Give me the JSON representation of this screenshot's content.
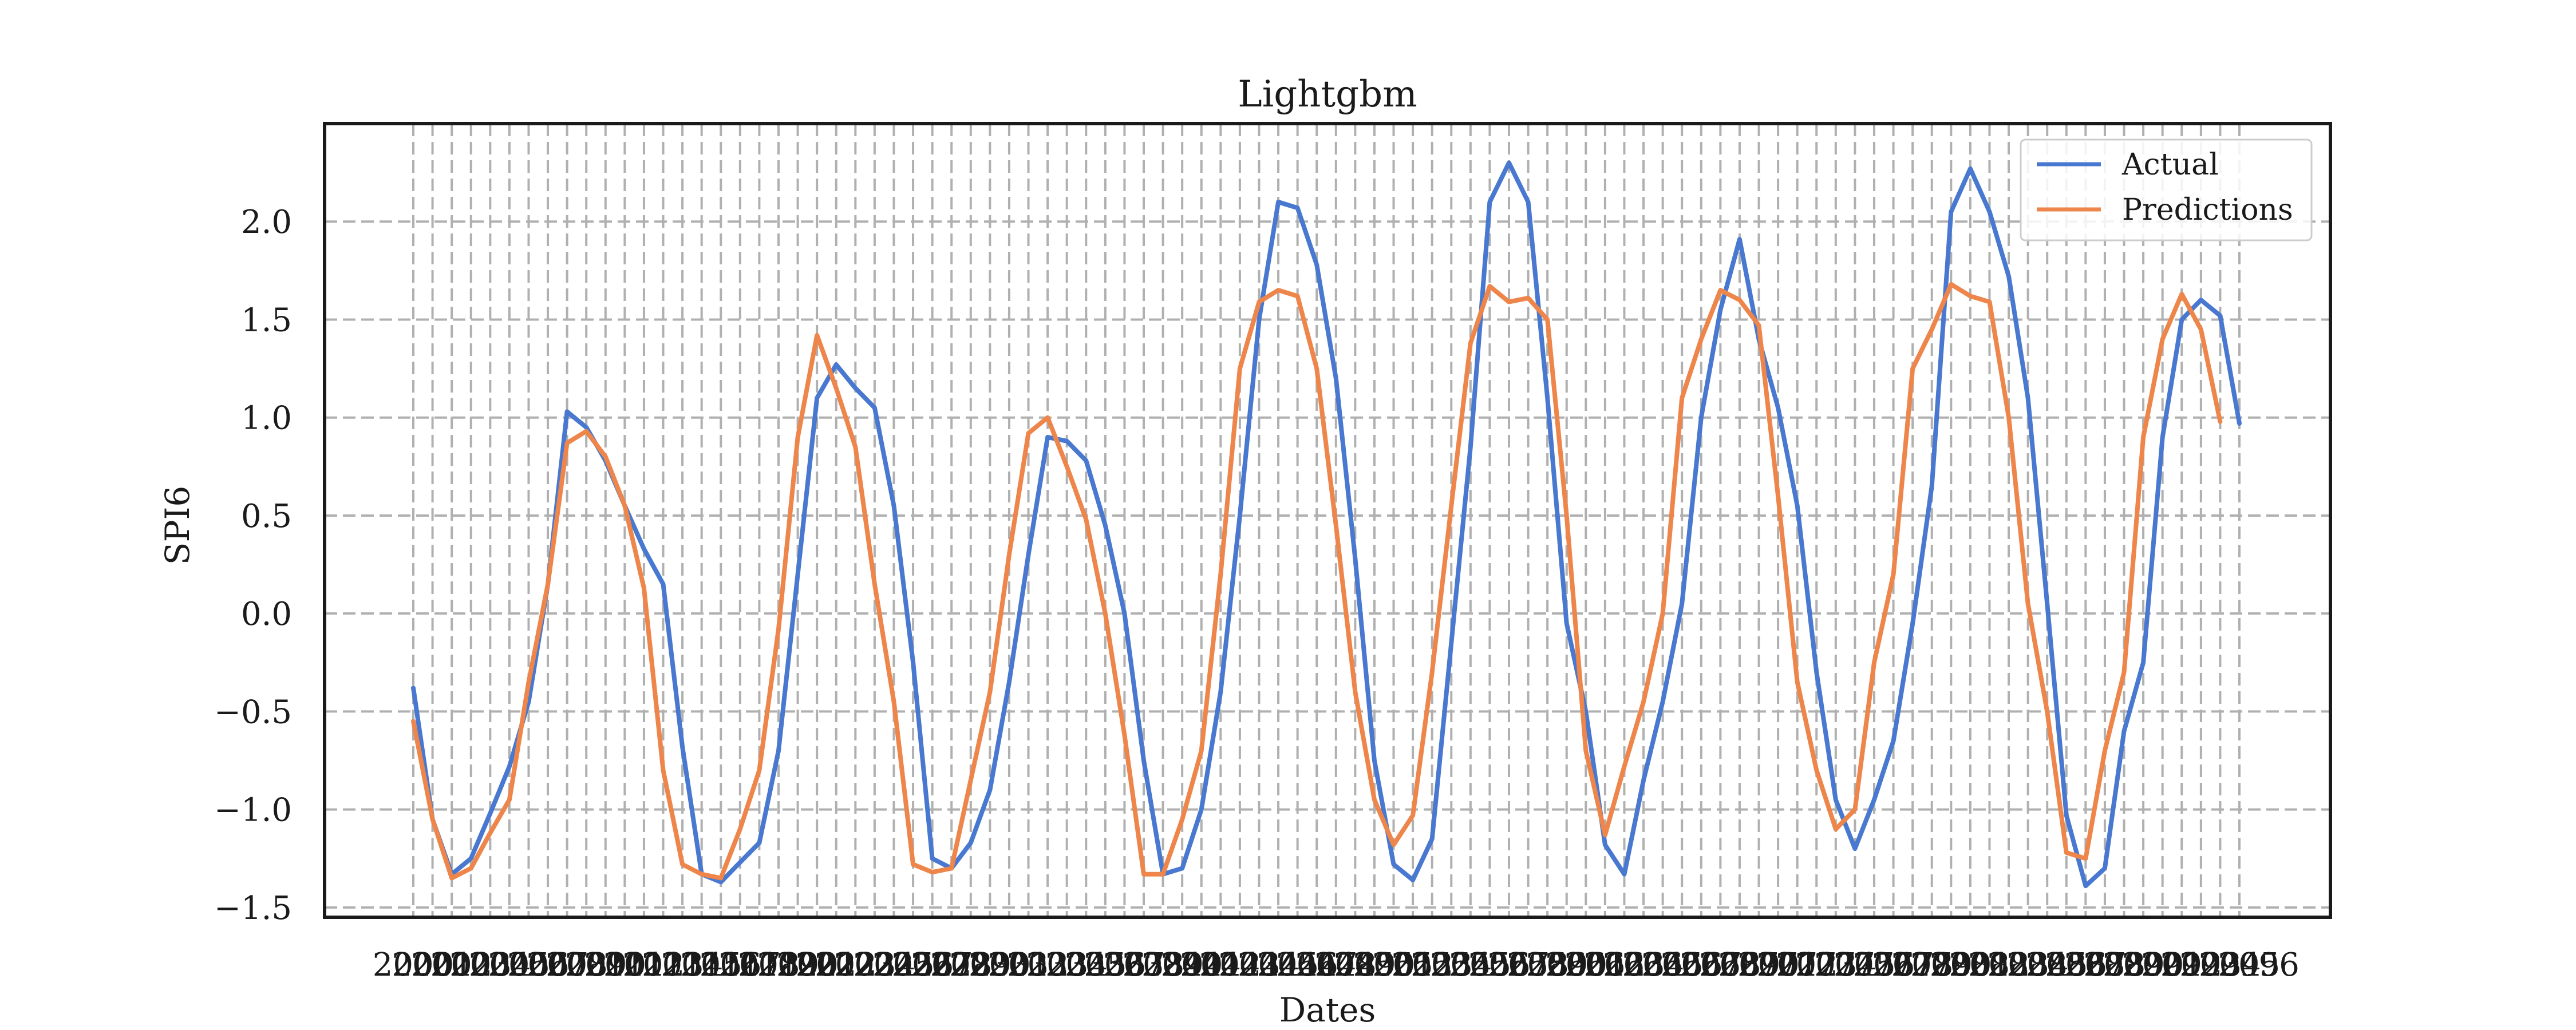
{
  "chart_data": {
    "type": "line",
    "title": "Lightgbm",
    "xlabel": "Dates",
    "ylabel": "SPI6",
    "ylim": [
      -1.55,
      2.5
    ],
    "yticks": [
      -1.5,
      -1.0,
      -0.5,
      0.0,
      0.5,
      1.0,
      1.5,
      2.0
    ],
    "ytick_labels": [
      "−1.5",
      "−1.0",
      "−0.5",
      "0.0",
      "0.5",
      "1.0",
      "1.5",
      "2.0"
    ],
    "grid": true,
    "legend": "top-right",
    "colors": {
      "Actual": "#4878cf",
      "Predictions": "#ee854a"
    },
    "xtick_labels": [
      "2000",
      "2001",
      "2002",
      "2003",
      "2004",
      "2005",
      "2006",
      "2007",
      "2008",
      "2009",
      "2010",
      "2011",
      "2012",
      "2013",
      "2014",
      "2015",
      "2016",
      "2017",
      "2018",
      "2019",
      "2020",
      "2021",
      "2022",
      "2023",
      "2024",
      "2025",
      "2026",
      "2027",
      "2028",
      "2029",
      "2030",
      "2031",
      "2032",
      "2033",
      "2034",
      "2035",
      "2036",
      "2037",
      "2038",
      "2039",
      "2040",
      "2041",
      "2042",
      "2043",
      "2044",
      "2045",
      "2046",
      "2047",
      "2048",
      "2049",
      "2050",
      "2051",
      "2052",
      "2053",
      "2054",
      "2055",
      "2056",
      "2057",
      "2058",
      "2059",
      "2060",
      "2061",
      "2062",
      "2063",
      "2064",
      "2065",
      "2066",
      "2067",
      "2068",
      "2069",
      "2070",
      "2071",
      "2072",
      "2073",
      "2074",
      "2075",
      "2076",
      "2077",
      "2078",
      "2079",
      "2080",
      "2081",
      "2082",
      "2083",
      "2084",
      "2085",
      "2086",
      "2087",
      "2088",
      "2089",
      "2090",
      "2091",
      "2092",
      "2093",
      "2094",
      "2095",
      "2096"
    ],
    "series": [
      {
        "name": "Actual",
        "values": [
          -0.38,
          -1.05,
          -1.33,
          -1.25,
          -1.02,
          -0.78,
          -0.45,
          0.15,
          1.03,
          0.95,
          0.78,
          0.55,
          0.33,
          0.15,
          -0.68,
          -1.33,
          -1.37,
          -1.27,
          -1.17,
          -0.7,
          0.2,
          1.1,
          1.27,
          1.15,
          1.05,
          0.55,
          -0.25,
          -1.25,
          -1.3,
          -1.17,
          -0.9,
          -0.35,
          0.3,
          0.9,
          0.88,
          0.78,
          0.45,
          0.0,
          -0.75,
          -1.33,
          -1.3,
          -1.0,
          -0.4,
          0.5,
          1.5,
          2.1,
          2.07,
          1.78,
          1.2,
          0.28,
          -0.75,
          -1.28,
          -1.36,
          -1.15,
          -0.15,
          0.85,
          2.1,
          2.3,
          2.1,
          1.1,
          -0.05,
          -0.5,
          -1.18,
          -1.33,
          -0.85,
          -0.45,
          0.05,
          1.0,
          1.55,
          1.91,
          1.4,
          1.05,
          0.55,
          -0.3,
          -0.95,
          -1.2,
          -0.95,
          -0.65,
          -0.05,
          0.65,
          2.05,
          2.27,
          2.05,
          1.72,
          1.1,
          0.05,
          -1.03,
          -1.39,
          -1.3,
          -0.6,
          -0.25,
          0.9,
          1.5,
          1.6,
          1.52,
          0.97
        ]
      },
      {
        "name": "Predictions",
        "values": [
          -0.55,
          -1.05,
          -1.35,
          -1.3,
          -1.12,
          -0.95,
          -0.35,
          0.15,
          0.87,
          0.93,
          0.8,
          0.55,
          0.13,
          -0.8,
          -1.28,
          -1.33,
          -1.35,
          -1.1,
          -0.8,
          -0.08,
          0.9,
          1.42,
          1.15,
          0.85,
          0.15,
          -0.45,
          -1.28,
          -1.32,
          -1.3,
          -0.85,
          -0.4,
          0.3,
          0.92,
          1.0,
          0.75,
          0.48,
          0.0,
          -0.62,
          -1.33,
          -1.33,
          -1.05,
          -0.7,
          0.2,
          1.25,
          1.59,
          1.65,
          1.62,
          1.25,
          0.45,
          -0.4,
          -0.95,
          -1.18,
          -1.03,
          -0.3,
          0.55,
          1.38,
          1.67,
          1.59,
          1.61,
          1.5,
          0.5,
          -0.7,
          -1.13,
          -0.78,
          -0.45,
          0.0,
          1.1,
          1.4,
          1.65,
          1.6,
          1.47,
          0.6,
          -0.35,
          -0.8,
          -1.1,
          -1.0,
          -0.25,
          0.2,
          1.25,
          1.45,
          1.68,
          1.62,
          1.59,
          1.0,
          0.05,
          -0.5,
          -1.22,
          -1.25,
          -0.7,
          -0.3,
          0.9,
          1.4,
          1.63,
          1.45,
          0.98
        ]
      }
    ]
  }
}
